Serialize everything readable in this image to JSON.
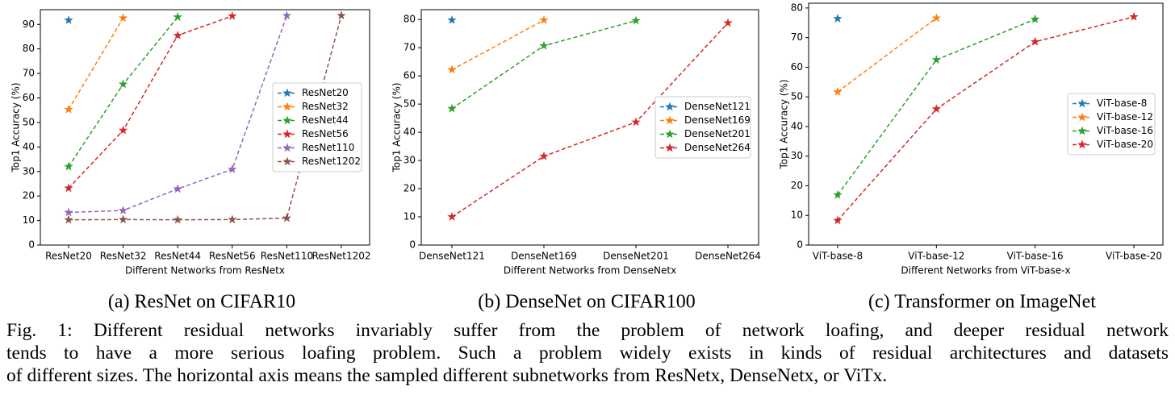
{
  "chart_data": [
    {
      "type": "line",
      "subcaption": "(a) ResNet on CIFAR10",
      "xlabel": "Different Networks from ResNetx",
      "ylabel": "Top1 Accuracy (%)",
      "categories": [
        "ResNet20",
        "ResNet32",
        "ResNet44",
        "ResNet56",
        "ResNet110",
        "ResNet1202"
      ],
      "ylim": [
        0,
        96
      ],
      "yticks": [
        0,
        10,
        20,
        30,
        40,
        50,
        60,
        70,
        80,
        90
      ],
      "legend": "center right",
      "series": [
        {
          "name": "ResNet20",
          "color": "#1f77b4",
          "values": [
            91.7,
            null,
            null,
            null,
            null,
            null
          ]
        },
        {
          "name": "ResNet32",
          "color": "#ff7f0e",
          "values": [
            55.3,
            92.6,
            null,
            null,
            null,
            null
          ]
        },
        {
          "name": "ResNet44",
          "color": "#2ca02c",
          "values": [
            32.0,
            65.6,
            93.0,
            null,
            null,
            null
          ]
        },
        {
          "name": "ResNet56",
          "color": "#d62728",
          "values": [
            23.2,
            46.8,
            85.5,
            93.4,
            null,
            null
          ]
        },
        {
          "name": "ResNet110",
          "color": "#9467bd",
          "values": [
            13.3,
            14.1,
            22.9,
            30.9,
            93.6,
            null
          ]
        },
        {
          "name": "ResNet1202",
          "color": "#8c564b",
          "values": [
            10.3,
            10.4,
            10.3,
            10.4,
            11.0,
            93.6
          ]
        }
      ]
    },
    {
      "type": "line",
      "subcaption": "(b) DenseNet on CIFAR100",
      "xlabel": "Different Networks from DenseNetx",
      "ylabel": "Top1 Accuracy (%)",
      "categories": [
        "DenseNet121",
        "DenseNet169",
        "DenseNet201",
        "DenseNet264"
      ],
      "ylim": [
        0,
        83.5
      ],
      "yticks": [
        0,
        10,
        20,
        30,
        40,
        50,
        60,
        70,
        80
      ],
      "legend": "center right",
      "series": [
        {
          "name": "DenseNet121",
          "color": "#1f77b4",
          "values": [
            79.8,
            null,
            null,
            null
          ]
        },
        {
          "name": "DenseNet169",
          "color": "#ff7f0e",
          "values": [
            62.2,
            79.8,
            null,
            null
          ]
        },
        {
          "name": "DenseNet201",
          "color": "#2ca02c",
          "values": [
            48.4,
            70.7,
            79.6,
            null
          ]
        },
        {
          "name": "DenseNet264",
          "color": "#d62728",
          "values": [
            10.0,
            31.5,
            43.6,
            78.8
          ]
        }
      ]
    },
    {
      "type": "line",
      "subcaption": "(c) Transformer on ImageNet",
      "xlabel": "Different Networks from ViT-base-x",
      "ylabel": "Top1 Accuracy (%)",
      "categories": [
        "ViT-base-8",
        "ViT-base-12",
        "ViT-base-16",
        "ViT-base-20"
      ],
      "ylim": [
        0,
        81.6
      ],
      "yticks": [
        0,
        10,
        20,
        30,
        40,
        50,
        60,
        70,
        80
      ],
      "legend": "center right",
      "series": [
        {
          "name": "ViT-base-8",
          "color": "#1f77b4",
          "values": [
            76.4,
            null,
            null,
            null
          ]
        },
        {
          "name": "ViT-base-12",
          "color": "#ff7f0e",
          "values": [
            51.7,
            76.6,
            null,
            null
          ]
        },
        {
          "name": "ViT-base-16",
          "color": "#2ca02c",
          "values": [
            16.9,
            62.5,
            76.2,
            null
          ]
        },
        {
          "name": "ViT-base-20",
          "color": "#d62728",
          "values": [
            8.3,
            45.9,
            68.6,
            77.0
          ]
        }
      ]
    }
  ],
  "caption": [
    "Fig. 1: Different residual networks invariably suffer from the problem of network loafing, and deeper residual network",
    "tends to have a more serious loafing problem. Such a problem widely exists in kinds of residual architectures and datasets",
    "of different sizes. The horizontal axis means the sampled different subnetworks from ResNetx, DenseNetx, or ViTx."
  ]
}
